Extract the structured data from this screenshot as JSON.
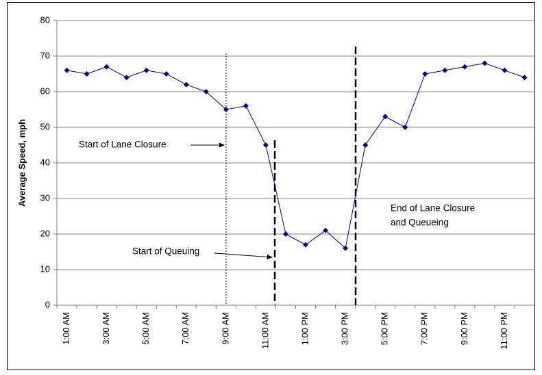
{
  "chart_data": {
    "type": "line",
    "y_label": "Average Speed, mph",
    "categories": [
      "1:00 AM",
      null,
      "3:00 AM",
      null,
      "5:00 AM",
      null,
      "7:00 AM",
      null,
      "9:00 AM",
      null,
      "11:00 AM",
      null,
      "1:00 PM",
      null,
      "3:00 PM",
      null,
      "5:00 PM",
      null,
      "7:00 PM",
      null,
      "9:00 PM",
      null,
      "11:00 PM",
      null
    ],
    "series": [
      {
        "name": "Average Speed",
        "color": "#000080",
        "values": [
          66,
          65,
          67,
          64,
          66,
          65,
          62,
          60,
          55,
          56,
          45,
          20,
          17,
          21,
          16,
          45,
          53,
          50,
          65,
          66,
          67,
          68,
          66,
          64
        ]
      }
    ],
    "ylim": [
      0,
      80
    ],
    "yticks": [
      0,
      10,
      20,
      30,
      40,
      50,
      60,
      70,
      80
    ],
    "grid": true,
    "annotations": [
      "Start of Lane Closure",
      "Start of Queuing",
      "End of Lane Closure",
      "and Queueing"
    ]
  }
}
